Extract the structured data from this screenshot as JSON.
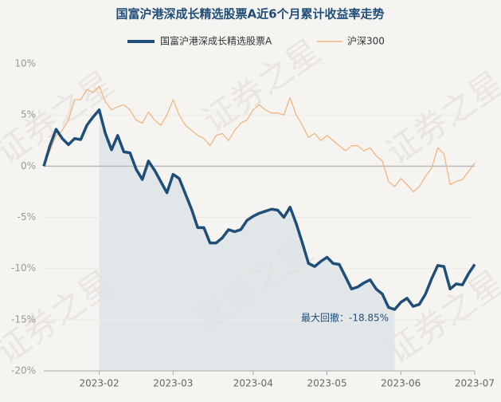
{
  "chart_data": {
    "type": "line",
    "title": "国富沪港深成长精选股票A近6个月累计收益率走势",
    "watermark": "证券之星",
    "annotation": "最大回撤：-18.85%",
    "categories": [
      null,
      null,
      null,
      null,
      null,
      null,
      null,
      null,
      null,
      "2023-02",
      null,
      null,
      null,
      null,
      null,
      null,
      null,
      null,
      null,
      null,
      null,
      "2023-03",
      null,
      null,
      null,
      null,
      null,
      null,
      null,
      null,
      null,
      null,
      null,
      null,
      "2023-04",
      null,
      null,
      null,
      null,
      null,
      null,
      null,
      null,
      null,
      null,
      null,
      "2023-05",
      null,
      null,
      null,
      null,
      null,
      null,
      null,
      null,
      null,
      null,
      null,
      "2023-06",
      null,
      null,
      null,
      null,
      null,
      null,
      null,
      null,
      null,
      null,
      null,
      "2023-07"
    ],
    "ylim": [
      -20,
      10
    ],
    "yticks": [
      {
        "value": -20,
        "label": "-20%"
      },
      {
        "value": -15,
        "label": "-15%"
      },
      {
        "value": -10,
        "label": "-10%"
      },
      {
        "value": -5,
        "label": "-5%"
      },
      {
        "value": 0,
        "label": "0%"
      },
      {
        "value": 5,
        "label": "5%"
      },
      {
        "value": 10,
        "label": "10%"
      }
    ],
    "series": [
      {
        "name": "国富沪港深成长精选股票A",
        "color": "#1f4e79",
        "values": [
          0,
          2,
          3.6,
          2.7,
          2.1,
          2.7,
          2.6,
          4,
          4.8,
          5.5,
          3.2,
          1.6,
          3,
          1.4,
          1.3,
          -0.3,
          -1.3,
          0.5,
          -0.4,
          -1.5,
          -2.6,
          -0.8,
          -1.2,
          -2.7,
          -4.2,
          -6,
          -6,
          -7.5,
          -7.5,
          -7,
          -6.2,
          -6.4,
          -6.2,
          -5.3,
          -4.9,
          -4.6,
          -4.4,
          -4.2,
          -4.3,
          -5,
          -4,
          -5.6,
          -7.5,
          -9.5,
          -9.8,
          -9.3,
          -8.9,
          -9.5,
          -9.6,
          -10.8,
          -12,
          -11.8,
          -11.4,
          -11.1,
          -12,
          -12.5,
          -13.8,
          -14,
          -13.3,
          -12.9,
          -13.7,
          -13.5,
          -12.5,
          -11,
          -9.7,
          -9.8,
          -12,
          -11.5,
          -11.6,
          -10.5,
          -9.6
        ]
      },
      {
        "name": "沪深300",
        "color": "#f0b27a",
        "values": [
          0,
          1.5,
          3,
          3.5,
          4.5,
          6.5,
          6.5,
          7.5,
          7.2,
          7.8,
          6.3,
          5.5,
          5.8,
          6,
          5.5,
          4.5,
          4.2,
          5.3,
          4.5,
          4,
          5,
          6.5,
          5,
          4,
          3.5,
          3,
          2.7,
          2,
          3,
          3.2,
          2.5,
          3.5,
          4.2,
          4.5,
          5.5,
          6,
          5.5,
          5.2,
          5.2,
          5,
          6.7,
          5,
          4,
          2.8,
          3.2,
          2.5,
          3,
          2.5,
          2,
          1.5,
          2,
          2,
          1.5,
          1.8,
          1,
          0.5,
          -1.5,
          -2,
          -1.2,
          -1.8,
          -2.5,
          -2,
          -1,
          -0.2,
          1.8,
          1.2,
          -1.8,
          -1.5,
          -1.3,
          -0.5,
          0.3
        ]
      }
    ]
  }
}
